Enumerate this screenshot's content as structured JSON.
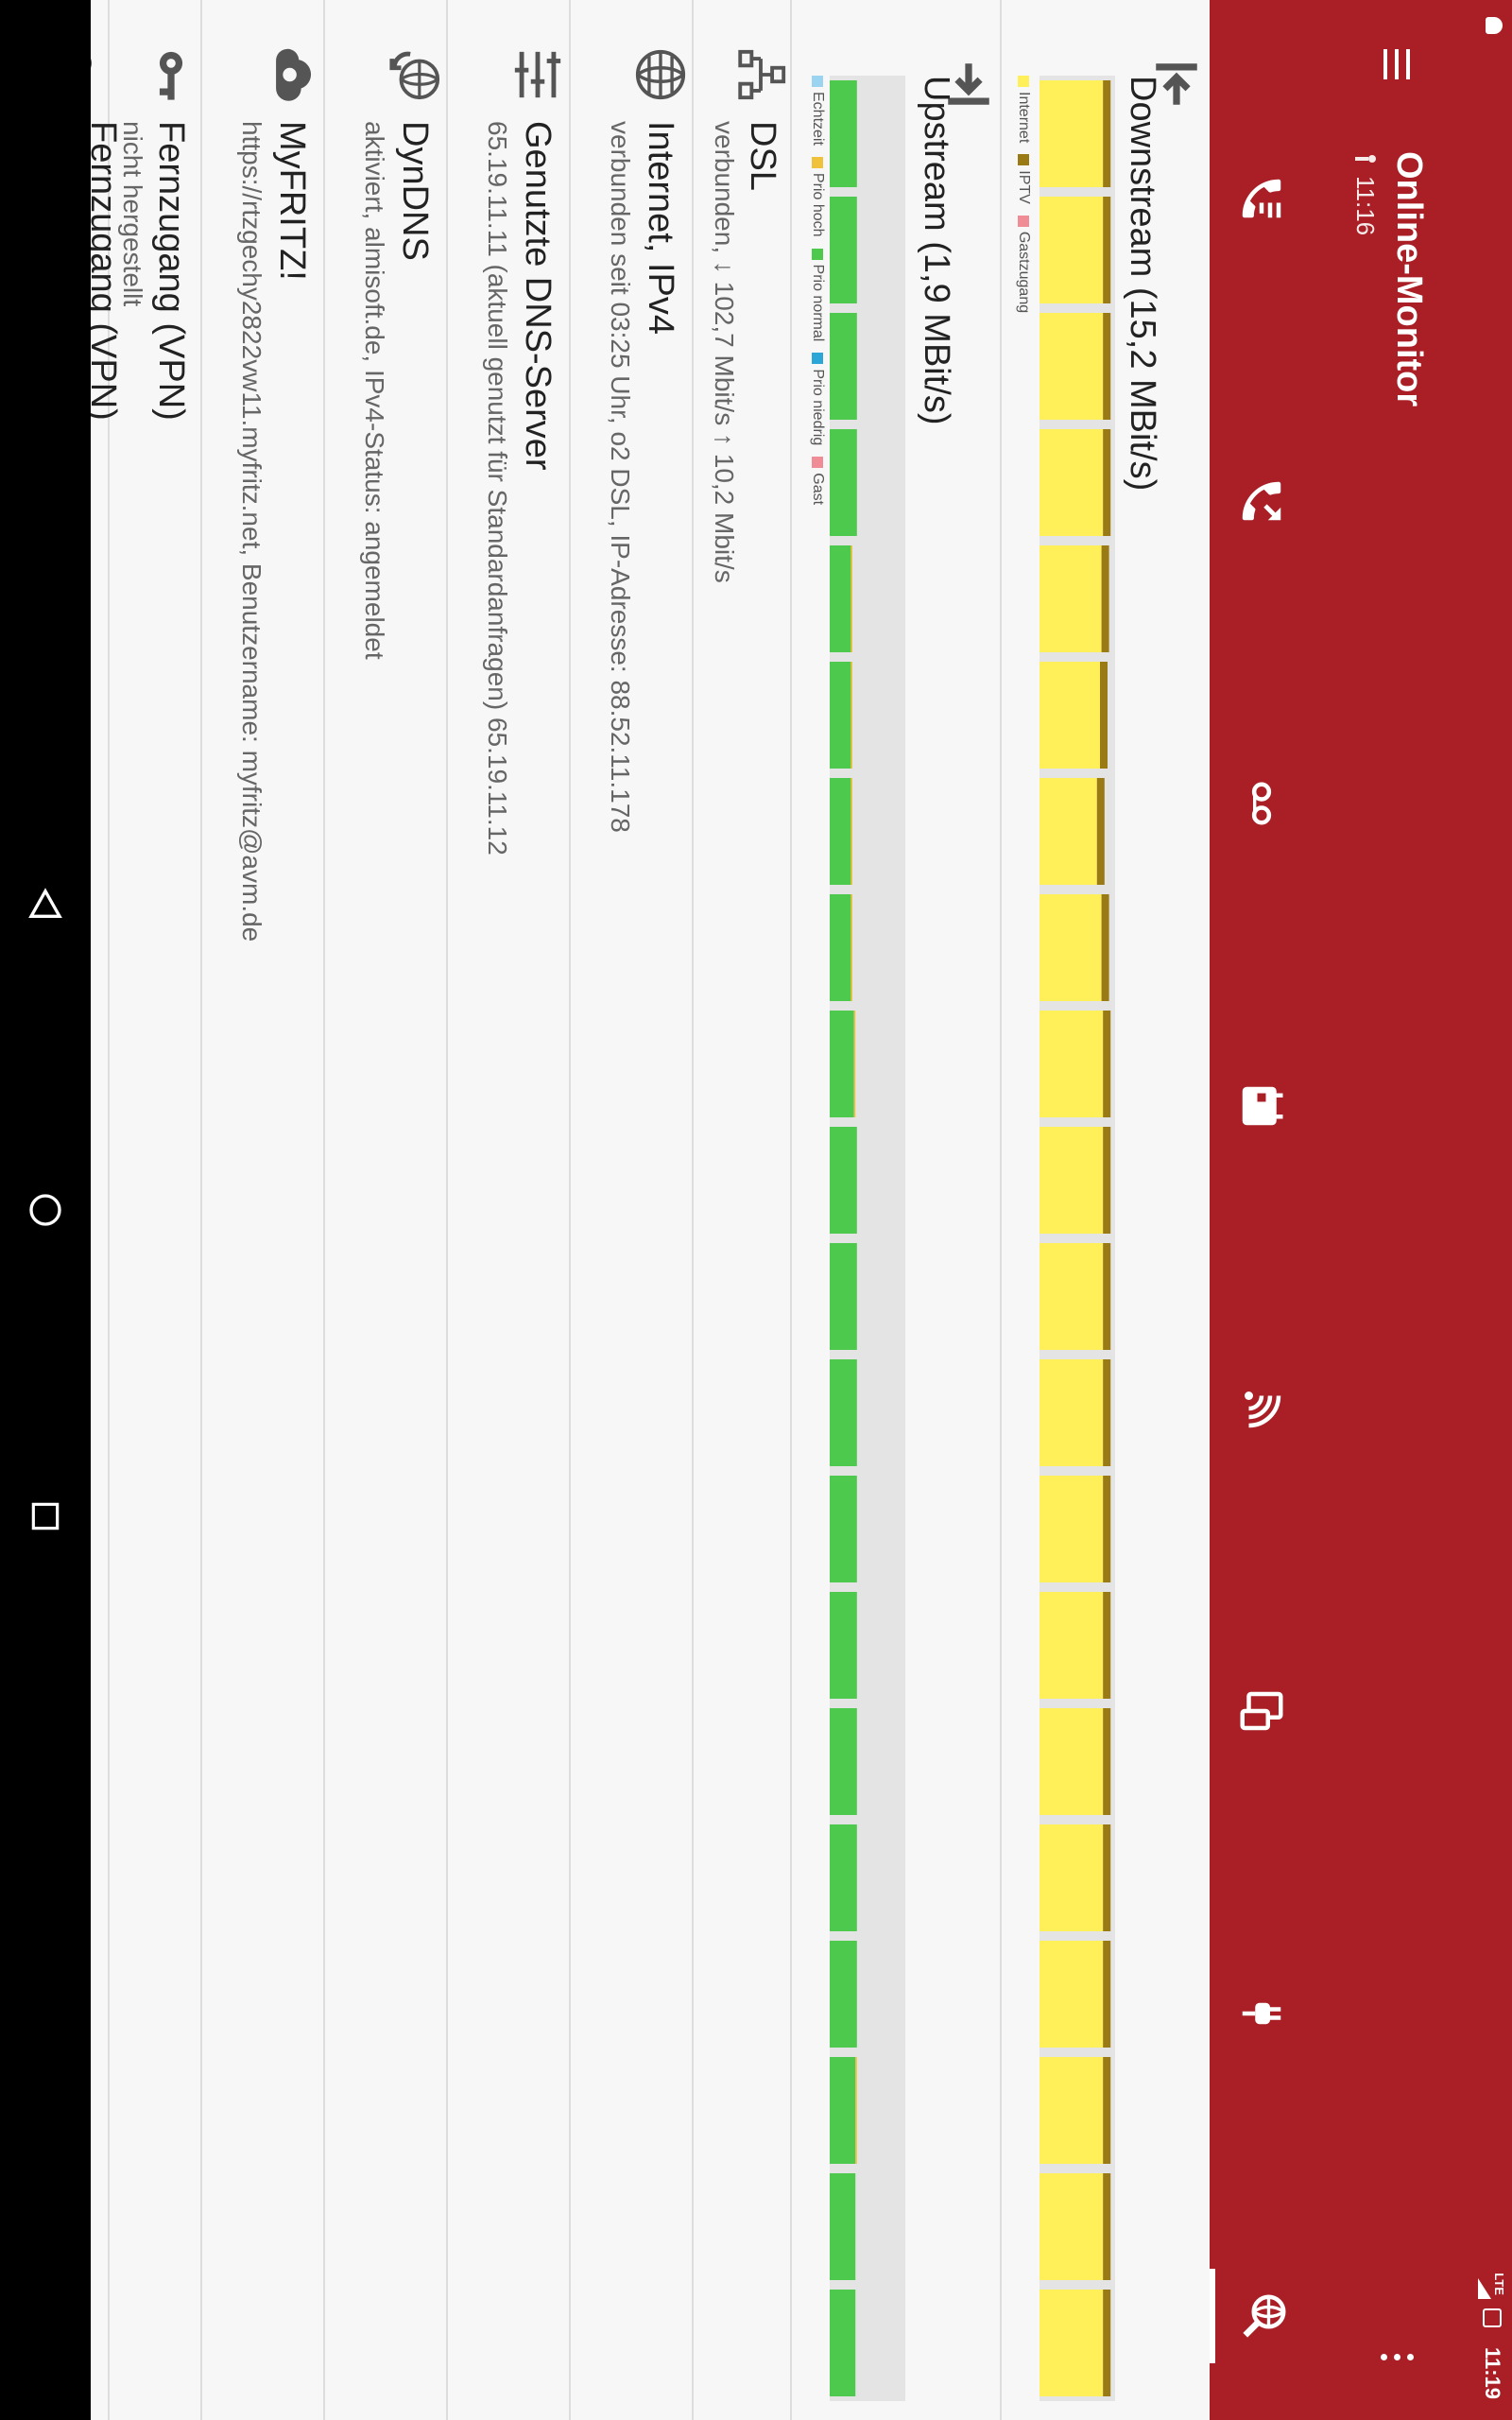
{
  "status_bar": {
    "time": "11:19",
    "network": "LTE"
  },
  "app_bar": {
    "title": "Online-Monitor",
    "subtitle": "11:16",
    "menu_icon": "hamburger-menu-icon",
    "overflow_icon": "more-vert-icon"
  },
  "tabs": [
    {
      "name": "tab-calls",
      "icon": "call-list-icon"
    },
    {
      "name": "tab-call-forwarding",
      "icon": "call-forward-icon"
    },
    {
      "name": "tab-voicemail",
      "icon": "voicemail-icon"
    },
    {
      "name": "tab-events",
      "icon": "calendar-icon"
    },
    {
      "name": "tab-wifi",
      "icon": "wifi-icon"
    },
    {
      "name": "tab-devices",
      "icon": "devices-icon"
    },
    {
      "name": "tab-smart-home",
      "icon": "plug-icon"
    },
    {
      "name": "tab-online-monitor",
      "icon": "globe-search-icon",
      "active": true
    }
  ],
  "downstream": {
    "title": "Downstream (15,2 MBit/s)",
    "icon": "downstream-icon",
    "legend": [
      {
        "label": "Internet",
        "color": "#fff059"
      },
      {
        "label": "IPTV",
        "color": "#9a7a14"
      },
      {
        "label": "Gastzugang",
        "color": "#f08c96"
      }
    ]
  },
  "upstream": {
    "title": "Upstream (1,9 MBit/s)",
    "icon": "upstream-icon",
    "legend": [
      {
        "label": "Echtzeit",
        "color": "#9ad4f0"
      },
      {
        "label": "Prio hoch",
        "color": "#f0c23c"
      },
      {
        "label": "Prio normal",
        "color": "#4dc94d"
      },
      {
        "label": "Prio niedrig",
        "color": "#2ca6d6"
      },
      {
        "label": "Gast",
        "color": "#f08c96"
      }
    ]
  },
  "chart_data": [
    {
      "type": "bar",
      "title": "Downstream (15,2 MBit/s)",
      "series": [
        {
          "name": "Internet",
          "values": [
            0.84,
            0.84,
            0.84,
            0.84,
            0.82,
            0.8,
            0.76,
            0.82,
            0.84,
            0.84,
            0.84,
            0.84,
            0.84,
            0.84,
            0.84,
            0.84,
            0.84,
            0.84,
            0.84,
            0.84
          ]
        },
        {
          "name": "IPTV",
          "values": [
            0.1,
            0.1,
            0.1,
            0.1,
            0.1,
            0.1,
            0.1,
            0.1,
            0.1,
            0.1,
            0.1,
            0.1,
            0.1,
            0.1,
            0.1,
            0.1,
            0.1,
            0.1,
            0.1,
            0.1
          ]
        }
      ],
      "ylim": [
        0,
        1
      ]
    },
    {
      "type": "bar",
      "title": "Upstream (1,9 MBit/s)",
      "series": [
        {
          "name": "Prio normal",
          "values": [
            0.36,
            0.36,
            0.36,
            0.36,
            0.28,
            0.28,
            0.28,
            0.28,
            0.32,
            0.36,
            0.36,
            0.36,
            0.36,
            0.36,
            0.36,
            0.36,
            0.36,
            0.34,
            0.34,
            0.34
          ]
        },
        {
          "name": "Prio hoch",
          "values": [
            0,
            0,
            0,
            0,
            0.02,
            0.02,
            0.02,
            0.02,
            0.02,
            0,
            0,
            0,
            0,
            0,
            0,
            0,
            0,
            0.02,
            0,
            0
          ]
        }
      ],
      "ylim": [
        0,
        1
      ]
    }
  ],
  "sections": [
    {
      "name": "dsl",
      "icon": "network-icon",
      "title": "DSL",
      "subtitle": "verbunden, ↓ 102,7 Mbit/s ↑ 10,2 Mbit/s"
    },
    {
      "name": "internet-ipv4",
      "icon": "globe-icon",
      "title": "Internet, IPv4",
      "subtitle": "verbunden seit 03:25 Uhr, o2 DSL, IP-Adresse: 88.52.11.178"
    },
    {
      "name": "dns-server",
      "icon": "dns-icon",
      "title": "Genutzte DNS-Server",
      "subtitle": "65.19.11.11 (aktuell genutzt für Standardanfragen) 65.19.11.12"
    },
    {
      "name": "dyndns",
      "icon": "dyndns-icon",
      "title": "DynDNS",
      "subtitle": "aktiviert, almisoft.de, IPv4-Status: angemeldet"
    },
    {
      "name": "myfritz",
      "icon": "cloud-icon",
      "title": "MyFRITZ!",
      "subtitle": "https://rtzgechy2822vw11.myfritz.net, Benutzername: myfritz@avm.de"
    },
    {
      "name": "vpn-1",
      "icon": "key-icon",
      "title": "Fernzugang (VPN)",
      "subtitle": "nicht hergestellt"
    },
    {
      "name": "vpn-2",
      "icon": "key-icon",
      "title": "Fernzugang (VPN)",
      "subtitle": ""
    }
  ],
  "navigation": {
    "back_icon": "nav-back-icon",
    "home_icon": "nav-home-icon",
    "recents_icon": "nav-recents-icon"
  },
  "fab": {
    "icon": "expand-down-icon"
  }
}
